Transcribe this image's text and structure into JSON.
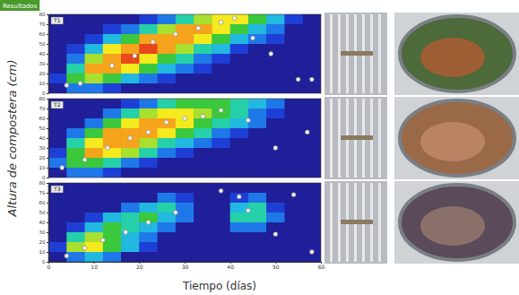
{
  "badge": "Resultados",
  "chart_data": [
    {
      "type": "heatmap",
      "title": "T1",
      "x": [
        2,
        6,
        10,
        14,
        18,
        22,
        26,
        30,
        34,
        38,
        42,
        46,
        50,
        54,
        58
      ],
      "y": [
        75,
        65,
        55,
        45,
        35,
        25,
        15,
        5
      ],
      "cells": [
        [
          22,
          22,
          22,
          22,
          24,
          28,
          34,
          42,
          50,
          58,
          55,
          45,
          35,
          26,
          22
        ],
        [
          22,
          22,
          22,
          26,
          32,
          40,
          52,
          60,
          62,
          58,
          48,
          38,
          30,
          24,
          22
        ],
        [
          22,
          22,
          28,
          36,
          48,
          60,
          64,
          62,
          55,
          45,
          38,
          30,
          25,
          22,
          22
        ],
        [
          22,
          26,
          38,
          55,
          63,
          65,
          60,
          50,
          42,
          35,
          28,
          24,
          22,
          22,
          22
        ],
        [
          22,
          32,
          50,
          62,
          66,
          58,
          48,
          40,
          32,
          26,
          23,
          22,
          22,
          22,
          22
        ],
        [
          24,
          40,
          60,
          64,
          55,
          45,
          36,
          30,
          25,
          22,
          22,
          22,
          22,
          22,
          22
        ],
        [
          26,
          45,
          52,
          45,
          38,
          30,
          26,
          23,
          22,
          22,
          22,
          22,
          22,
          22,
          22
        ],
        [
          22,
          30,
          32,
          28,
          24,
          22,
          22,
          22,
          22,
          22,
          22,
          22,
          22,
          22,
          22
        ]
      ],
      "zlim": [
        20,
        70
      ],
      "xlim": [
        0,
        60
      ],
      "xticks": [
        0,
        10,
        20,
        30,
        40,
        50,
        60
      ],
      "ylim": [
        0,
        80
      ],
      "yticks": [
        0,
        10,
        20,
        30,
        40,
        50,
        60,
        70,
        80
      ],
      "tick_labels": "y",
      "points": {
        "x": [
          4,
          7,
          14,
          19,
          23,
          28,
          33,
          38,
          41,
          45,
          49,
          55,
          58
        ],
        "y": [
          8,
          10,
          28,
          38,
          52,
          60,
          66,
          72,
          76,
          56,
          40,
          14,
          14
        ]
      }
    },
    {
      "type": "heatmap",
      "title": "T2",
      "ylabel": "Altura de compostera (cm)",
      "x": [
        2,
        6,
        10,
        14,
        18,
        22,
        26,
        30,
        34,
        38,
        42,
        46,
        50,
        54,
        58
      ],
      "y": [
        75,
        65,
        55,
        45,
        35,
        25,
        15,
        5
      ],
      "cells": [
        [
          22,
          22,
          22,
          22,
          26,
          32,
          40,
          45,
          48,
          46,
          42,
          36,
          30,
          24,
          22
        ],
        [
          22,
          22,
          24,
          30,
          40,
          50,
          58,
          56,
          50,
          45,
          40,
          34,
          28,
          22,
          22
        ],
        [
          22,
          24,
          32,
          45,
          58,
          62,
          60,
          55,
          48,
          42,
          36,
          30,
          24,
          22,
          22
        ],
        [
          22,
          30,
          48,
          60,
          64,
          62,
          55,
          46,
          40,
          34,
          28,
          24,
          22,
          22,
          22
        ],
        [
          24,
          40,
          58,
          64,
          60,
          52,
          44,
          38,
          30,
          25,
          22,
          22,
          22,
          22,
          22
        ],
        [
          28,
          48,
          62,
          58,
          50,
          42,
          34,
          28,
          24,
          22,
          22,
          22,
          22,
          22,
          22
        ],
        [
          30,
          45,
          48,
          40,
          34,
          28,
          24,
          22,
          22,
          22,
          22,
          22,
          22,
          22,
          22
        ],
        [
          24,
          30,
          30,
          26,
          22,
          22,
          22,
          22,
          22,
          22,
          22,
          22,
          22,
          22,
          22
        ]
      ],
      "zlim": [
        20,
        70
      ],
      "xlim": [
        0,
        60
      ],
      "xticks": [
        0,
        10,
        20,
        30,
        40,
        50,
        60
      ],
      "ylim": [
        0,
        80
      ],
      "yticks": [
        0,
        10,
        20,
        30,
        40,
        50,
        60,
        70,
        80
      ],
      "tick_labels": "y",
      "points": {
        "x": [
          3,
          8,
          13,
          18,
          22,
          26,
          30,
          34,
          38,
          44,
          50,
          57
        ],
        "y": [
          10,
          18,
          30,
          40,
          46,
          56,
          60,
          62,
          68,
          58,
          30,
          46
        ]
      }
    },
    {
      "type": "heatmap",
      "title": "T3",
      "xlabel": "Tiempo (días)",
      "x": [
        2,
        6,
        10,
        14,
        18,
        22,
        26,
        30,
        34,
        38,
        42,
        46,
        50,
        54,
        58
      ],
      "y": [
        75,
        65,
        55,
        45,
        35,
        25,
        15,
        5
      ],
      "cells": [
        [
          20,
          20,
          20,
          20,
          20,
          20,
          20,
          20,
          20,
          20,
          22,
          22,
          20,
          20,
          20
        ],
        [
          20,
          20,
          20,
          20,
          20,
          24,
          30,
          28,
          22,
          20,
          26,
          30,
          22,
          20,
          20
        ],
        [
          20,
          20,
          20,
          24,
          30,
          36,
          40,
          34,
          24,
          22,
          38,
          42,
          28,
          20,
          20
        ],
        [
          20,
          22,
          28,
          36,
          44,
          46,
          38,
          30,
          22,
          22,
          40,
          44,
          30,
          20,
          20
        ],
        [
          20,
          28,
          38,
          48,
          44,
          38,
          30,
          24,
          20,
          20,
          30,
          32,
          24,
          20,
          20
        ],
        [
          24,
          40,
          52,
          46,
          38,
          30,
          24,
          20,
          20,
          20,
          22,
          22,
          20,
          20,
          20
        ],
        [
          28,
          50,
          58,
          48,
          36,
          28,
          22,
          20,
          20,
          20,
          20,
          20,
          20,
          20,
          20
        ],
        [
          24,
          34,
          36,
          30,
          24,
          20,
          20,
          20,
          20,
          20,
          20,
          20,
          20,
          20,
          20
        ]
      ],
      "zlim": [
        20,
        70
      ],
      "xlim": [
        0,
        60
      ],
      "xticks": [
        0,
        10,
        20,
        30,
        40,
        50,
        60
      ],
      "ylim": [
        0,
        80
      ],
      "yticks": [
        0,
        10,
        20,
        30,
        40,
        50,
        60,
        70,
        80
      ],
      "points": {
        "x": [
          4,
          8,
          12,
          17,
          22,
          28,
          38,
          42,
          44,
          50,
          54,
          58
        ],
        "y": [
          6,
          14,
          22,
          30,
          40,
          50,
          72,
          66,
          52,
          28,
          68,
          10
        ]
      }
    }
  ]
}
